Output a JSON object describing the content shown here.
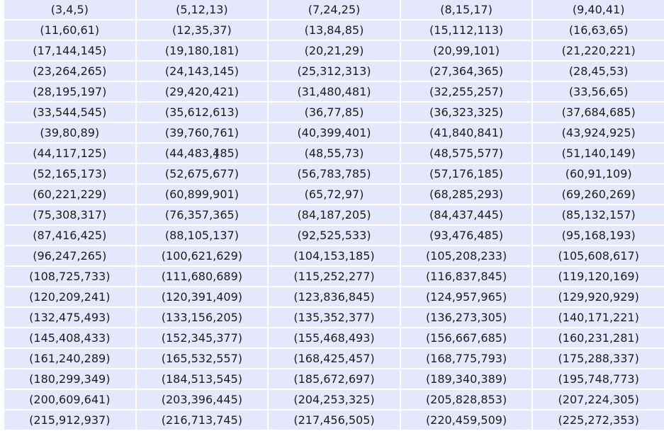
{
  "table": {
    "rows": [
      [
        "(3,4,5)",
        "(5,12,13)",
        "(7,24,25)",
        "(8,15,17)",
        "(9,40,41)"
      ],
      [
        "(11,60,61)",
        "(12,35,37)",
        "(13,84,85)",
        "(15,112,113)",
        "(16,63,65)"
      ],
      [
        "(17,144,145)",
        "(19,180,181)",
        "(20,21,29)",
        "(20,99,101)",
        "(21,220,221)"
      ],
      [
        "(23,264,265)",
        "(24,143,145)",
        "(25,312,313)",
        "(27,364,365)",
        "(28,45,53)"
      ],
      [
        "(28,195,197)",
        "(29,420,421)",
        "(31,480,481)",
        "(32,255,257)",
        "(33,56,65)"
      ],
      [
        "(33,544,545)",
        "(35,612,613)",
        "(36,77,85)",
        "(36,323,325)",
        "(37,684,685)"
      ],
      [
        "(39,80,89)",
        "(39,760,761)",
        "(40,399,401)",
        "(41,840,841)",
        "(43,924,925)"
      ],
      [
        "(44,117,125)",
        "(44,483,485)",
        "(48,55,73)",
        "(48,575,577)",
        "(51,140,149)"
      ],
      [
        "(52,165,173)",
        "(52,675,677)",
        "(56,783,785)",
        "(57,176,185)",
        "(60,91,109)"
      ],
      [
        "(60,221,229)",
        "(60,899,901)",
        "(65,72,97)",
        "(68,285,293)",
        "(69,260,269)"
      ],
      [
        "(75,308,317)",
        "(76,357,365)",
        "(84,187,205)",
        "(84,437,445)",
        "(85,132,157)"
      ],
      [
        "(87,416,425)",
        "(88,105,137)",
        "(92,525,533)",
        "(93,476,485)",
        "(95,168,193)"
      ],
      [
        "(96,247,265)",
        "(100,621,629)",
        "(104,153,185)",
        "(105,208,233)",
        "(105,608,617)"
      ],
      [
        "(108,725,733)",
        "(111,680,689)",
        "(115,252,277)",
        "(116,837,845)",
        "(119,120,169)"
      ],
      [
        "(120,209,241)",
        "(120,391,409)",
        "(123,836,845)",
        "(124,957,965)",
        "(129,920,929)"
      ],
      [
        "(132,475,493)",
        "(133,156,205)",
        "(135,352,377)",
        "(136,273,305)",
        "(140,171,221)"
      ],
      [
        "(145,408,433)",
        "(152,345,377)",
        "(155,468,493)",
        "(156,667,685)",
        "(160,231,281)"
      ],
      [
        "(161,240,289)",
        "(165,532,557)",
        "(168,425,457)",
        "(168,775,793)",
        "(175,288,337)"
      ],
      [
        "(180,299,349)",
        "(184,513,545)",
        "(185,672,697)",
        "(189,340,389)",
        "(195,748,773)"
      ],
      [
        "(200,609,641)",
        "(203,396,445)",
        "(204,253,325)",
        "(205,828,853)",
        "(207,224,305)"
      ],
      [
        "(215,912,937)",
        "(216,713,745)",
        "(217,456,505)",
        "(220,459,509)",
        "(225,272,353)"
      ]
    ]
  },
  "cursor": {
    "icon": "i-beam-cursor-icon"
  },
  "colors": {
    "cell_background": "#e5e8fc",
    "text": "#1c1c1c",
    "grid": "#ffffff"
  }
}
